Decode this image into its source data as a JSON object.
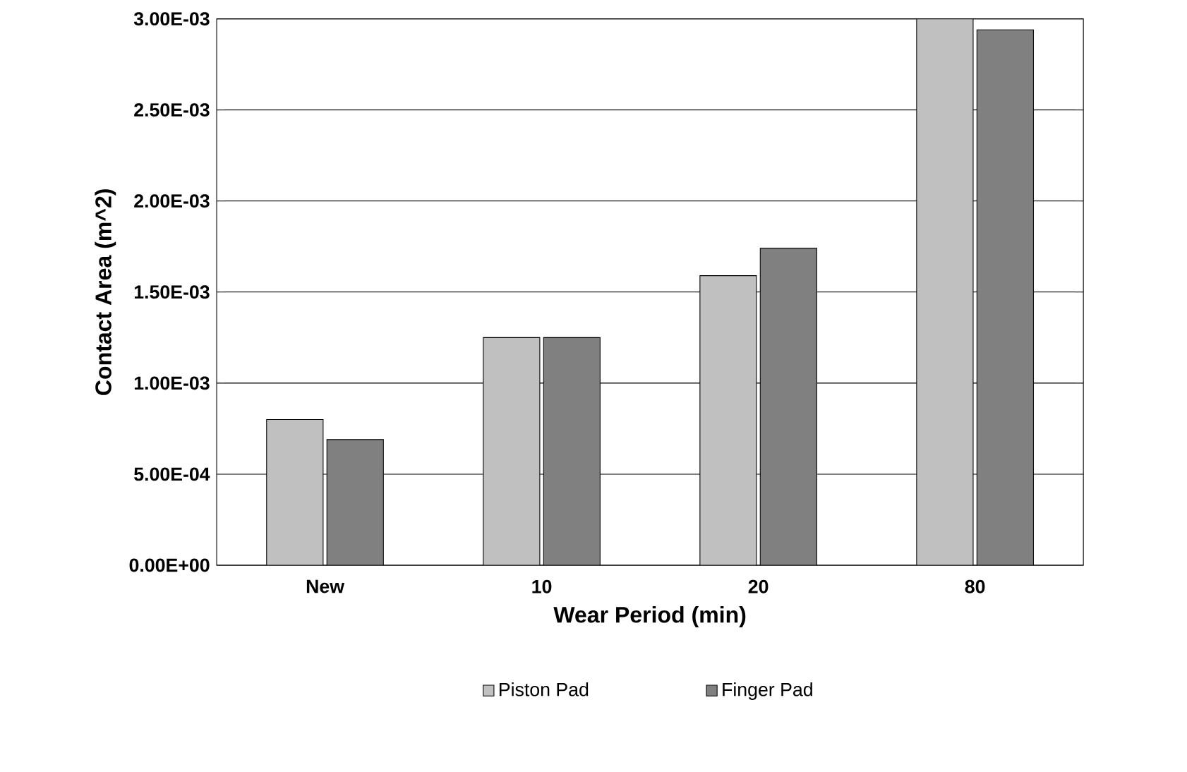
{
  "chart_data": {
    "type": "bar",
    "xlabel": "Wear Period (min)",
    "ylabel": "Contact Area (m^2)",
    "categories": [
      "New",
      "10",
      "20",
      "80"
    ],
    "series": [
      {
        "name": "Piston Pad",
        "color": "#c0c0c0",
        "values": [
          0.0008,
          0.00125,
          0.00159,
          0.003
        ]
      },
      {
        "name": "Finger Pad",
        "color": "#808080",
        "values": [
          0.00069,
          0.00125,
          0.00174,
          0.00294
        ]
      }
    ],
    "ylim": [
      0,
      0.003
    ],
    "yticks": [
      {
        "value": 0,
        "label": "0.00E+00"
      },
      {
        "value": 0.0005,
        "label": "5.00E-04"
      },
      {
        "value": 0.001,
        "label": "1.00E-03"
      },
      {
        "value": 0.0015,
        "label": "1.50E-03"
      },
      {
        "value": 0.002,
        "label": "2.00E-03"
      },
      {
        "value": 0.0025,
        "label": "2.50E-03"
      },
      {
        "value": 0.003,
        "label": "3.00E-03"
      }
    ],
    "grid": "y",
    "legend": "bottom"
  }
}
